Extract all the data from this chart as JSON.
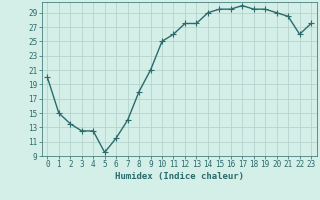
{
  "x": [
    0,
    1,
    2,
    3,
    4,
    5,
    6,
    7,
    8,
    9,
    10,
    11,
    12,
    13,
    14,
    15,
    16,
    17,
    18,
    19,
    20,
    21,
    22,
    23
  ],
  "y": [
    20,
    15,
    13.5,
    12.5,
    12.5,
    9.5,
    11.5,
    14,
    18,
    21,
    25,
    26,
    27.5,
    27.5,
    29,
    29.5,
    29.5,
    30,
    29.5,
    29.5,
    29,
    28.5,
    26,
    27.5
  ],
  "line_color": "#2a6b6b",
  "marker": "+",
  "marker_color": "#2a6b6b",
  "bg_color": "#d4eee8",
  "grid_color": "#b0cec8",
  "xlabel": "Humidex (Indice chaleur)",
  "xlim": [
    -0.5,
    23.5
  ],
  "ylim": [
    9,
    30
  ],
  "yticks": [
    9,
    11,
    13,
    15,
    17,
    19,
    21,
    23,
    25,
    27,
    29
  ],
  "font_color": "#2a6b6b",
  "linewidth": 1.0,
  "markersize": 4,
  "tick_fontsize": 5.5,
  "label_fontsize": 6.5
}
